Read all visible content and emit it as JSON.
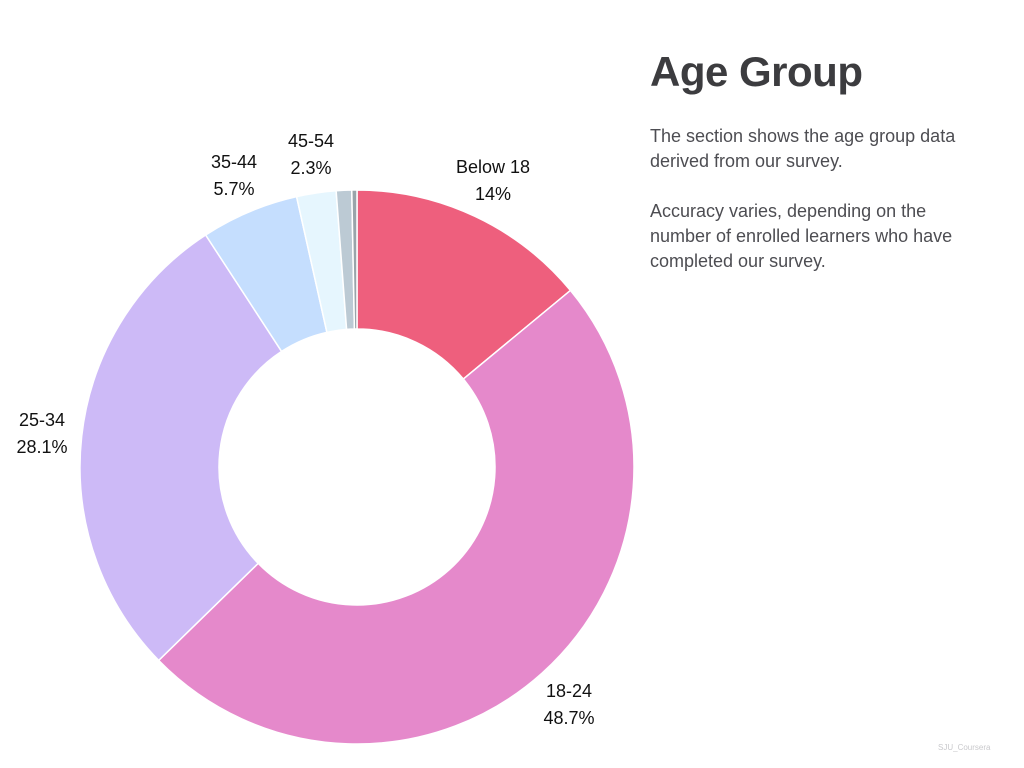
{
  "title": "Age Group",
  "description": [
    "The section shows the age group data derived from our survey.",
    "Accuracy varies, depending on the number of enrolled learners who have completed our survey."
  ],
  "watermark": "SJU_Coursera",
  "chart_data": {
    "type": "pie",
    "donut": true,
    "start": "top",
    "direction": "clockwise",
    "slices": [
      {
        "label": "Below 18",
        "value": 14,
        "display": "14%",
        "color": "#ee5f7d"
      },
      {
        "label": "18-24",
        "value": 48.7,
        "display": "48.7%",
        "color": "#e589cb"
      },
      {
        "label": "25-34",
        "value": 28.1,
        "display": "28.1%",
        "color": "#cdbaf7"
      },
      {
        "label": "35-44",
        "value": 5.7,
        "display": "5.7%",
        "color": "#c5defe"
      },
      {
        "label": "45-54",
        "value": 2.3,
        "display": "2.3%",
        "color": "#e6f6fe"
      },
      {
        "label": "",
        "value": 0.9,
        "display": "",
        "color": "#bccad4"
      },
      {
        "label": "",
        "value": 0.3,
        "display": "",
        "color": "#9aa4aa"
      }
    ]
  }
}
